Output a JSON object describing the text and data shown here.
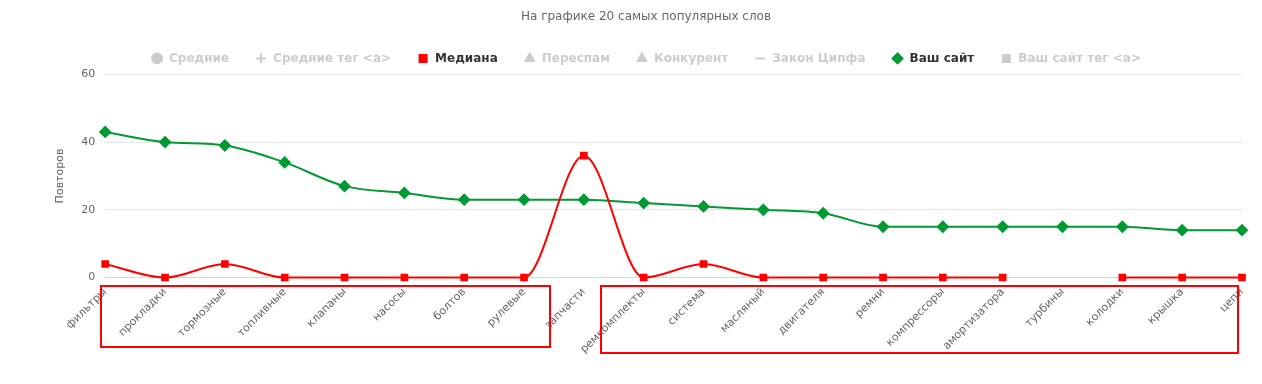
{
  "chart_data": {
    "type": "line",
    "title": "На графике 20 самых популярных слов",
    "ylabel": "Повторов",
    "categories": [
      "фильтры",
      "прокладки",
      "тормозные",
      "топливные",
      "клапаны",
      "насосы",
      "болтов",
      "рулевые",
      "запчасти",
      "ремкомплекты",
      "система",
      "масляный",
      "двигателя",
      "ремни",
      "компрессоры",
      "амортизатора",
      "турбины",
      "колодки",
      "крышка",
      "цепи"
    ],
    "series": [
      {
        "name": "Средние",
        "color": "#cccccc",
        "marker": "circle",
        "values": [
          null,
          null,
          null,
          null,
          null,
          null,
          null,
          null,
          null,
          null,
          null,
          null,
          null,
          null,
          null,
          null,
          null,
          null,
          null,
          null
        ]
      },
      {
        "name": "Средние тег <a>",
        "color": "#cccccc",
        "marker": "cross",
        "values": [
          null,
          null,
          null,
          null,
          null,
          null,
          null,
          null,
          null,
          null,
          null,
          null,
          null,
          null,
          null,
          null,
          null,
          null,
          null,
          null
        ]
      },
      {
        "name": "Медиана",
        "color": "#ff0000",
        "marker": "square",
        "values": [
          4,
          0,
          4,
          0,
          0,
          0,
          0,
          0,
          36,
          0,
          4,
          0,
          0,
          0,
          0,
          0,
          null,
          0,
          0,
          0
        ]
      },
      {
        "name": "Переспам",
        "color": "#cccccc",
        "marker": "triangle",
        "values": [
          null,
          null,
          null,
          null,
          null,
          null,
          null,
          null,
          null,
          null,
          null,
          null,
          null,
          null,
          null,
          null,
          null,
          null,
          null,
          null
        ]
      },
      {
        "name": "Конкурент",
        "color": "#cccccc",
        "marker": "triangle",
        "values": [
          null,
          null,
          null,
          null,
          null,
          null,
          null,
          null,
          null,
          null,
          null,
          null,
          null,
          null,
          null,
          null,
          null,
          null,
          null,
          null
        ]
      },
      {
        "name": "Закон Ципфа",
        "color": "#cccccc",
        "marker": "none",
        "values": [
          null,
          null,
          null,
          null,
          null,
          null,
          null,
          null,
          null,
          null,
          null,
          null,
          null,
          null,
          null,
          null,
          null,
          null,
          null,
          null
        ]
      },
      {
        "name": "Ваш сайт",
        "color": "#009933",
        "marker": "diamond",
        "values": [
          43,
          40,
          39,
          34,
          27,
          25,
          23,
          23,
          23,
          22,
          21,
          20,
          19,
          15,
          15,
          15,
          15,
          15,
          14,
          14
        ]
      },
      {
        "name": "Ваш сайт тег <a>",
        "color": "#cccccc",
        "marker": "square",
        "values": [
          null,
          null,
          null,
          null,
          null,
          null,
          null,
          null,
          null,
          null,
          null,
          null,
          null,
          null,
          null,
          null,
          null,
          null,
          null,
          null
        ]
      }
    ],
    "ylim": [
      0,
      60
    ],
    "yticks": [
      0,
      20,
      40,
      60
    ],
    "grid": "y",
    "legend": "top"
  }
}
